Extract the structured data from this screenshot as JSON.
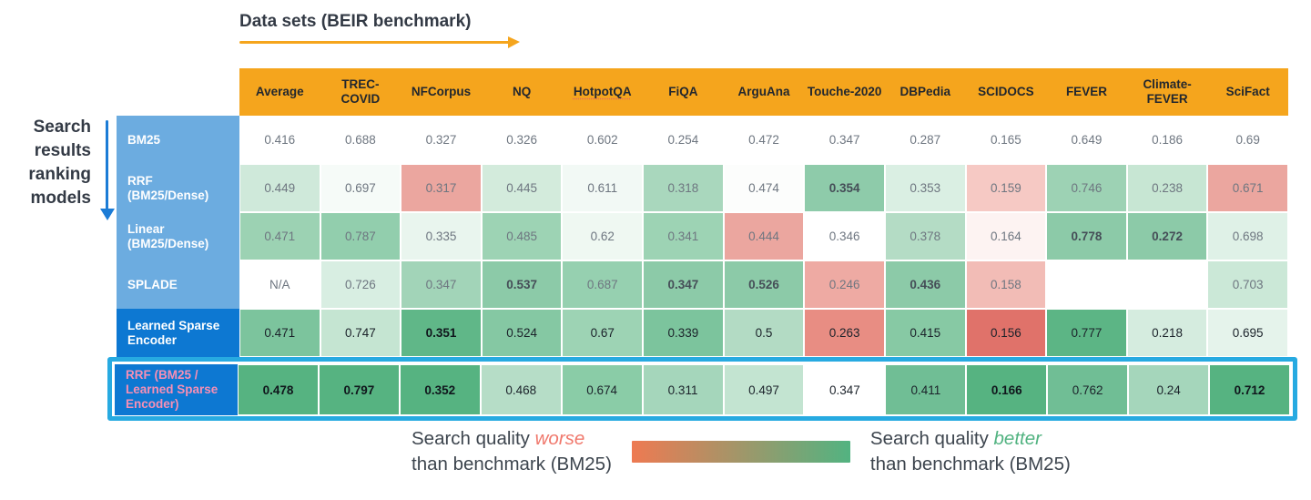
{
  "chart_data": {
    "type": "heatmap",
    "title": "Data sets (BEIR benchmark)",
    "row_axis_label": "Search results ranking models",
    "columns": [
      "Average",
      "TREC-COVID",
      "NFCorpus",
      "NQ",
      "HotpotQA",
      "FiQA",
      "ArguAna",
      "Touche-2020",
      "DBPedia",
      "SCIDOCS",
      "FEVER",
      "Climate-FEVER",
      "SciFact"
    ],
    "rows": [
      "BM25",
      "RRF (BM25/Dense)",
      "Linear (BM25/Dense)",
      "SPLADE",
      "Learned Sparse Encoder",
      "RRF (BM25 / Learned Sparse Encoder)"
    ],
    "values": [
      [
        0.416,
        0.688,
        0.327,
        0.326,
        0.602,
        0.254,
        0.472,
        0.347,
        0.287,
        0.165,
        0.649,
        0.186,
        0.69
      ],
      [
        0.449,
        0.697,
        0.317,
        0.445,
        0.611,
        0.318,
        0.474,
        0.354,
        0.353,
        0.159,
        0.746,
        0.238,
        0.671
      ],
      [
        0.471,
        0.787,
        0.335,
        0.485,
        0.62,
        0.341,
        0.444,
        0.346,
        0.378,
        0.164,
        0.778,
        0.272,
        0.698
      ],
      [
        null,
        0.726,
        0.347,
        0.537,
        0.687,
        0.347,
        0.526,
        0.246,
        0.436,
        0.158,
        null,
        null,
        0.703
      ],
      [
        0.471,
        0.747,
        0.351,
        0.524,
        0.67,
        0.339,
        0.5,
        0.263,
        0.415,
        0.156,
        0.777,
        0.218,
        0.695
      ],
      [
        0.478,
        0.797,
        0.352,
        0.468,
        0.674,
        0.311,
        0.497,
        0.347,
        0.411,
        0.166,
        0.762,
        0.24,
        0.712
      ]
    ],
    "benchmark_row": "BM25",
    "highlighted_row": "RRF (BM25 / Learned Sparse Encoder)",
    "legend_position": "bottom",
    "color_scale": {
      "worse": "#ee7a52",
      "neutral": "#ffffff",
      "better": "#52b381"
    }
  },
  "title": {
    "text": "Data sets (BEIR benchmark)",
    "arrow_color": "#f5a51d"
  },
  "y_axis": {
    "text": "Search results ranking models",
    "arrow_color": "#1c7cd6"
  },
  "heatmap": {
    "header_bg": "#f5a51d",
    "underlined_columns": [
      "HotpotQA"
    ],
    "columns": [
      "Average",
      "TREC-COVID",
      "NFCorpus",
      "NQ",
      "HotpotQA",
      "FiQA",
      "ArguAna",
      "Touche-2020",
      "DBPedia",
      "SCIDOCS",
      "FEVER",
      "Climate-FEVER",
      "SciFact"
    ],
    "rows": [
      {
        "label": "BM25",
        "label_bg": "#6cace0",
        "label_color": "#ffffff",
        "text_color": "#6e7680",
        "bold_text_color": "#454d57",
        "highlight": false,
        "cells": [
          {
            "v": "0.416",
            "bg": "#ffffff",
            "bold": false
          },
          {
            "v": "0.688",
            "bg": "#ffffff",
            "bold": false
          },
          {
            "v": "0.327",
            "bg": "#ffffff",
            "bold": false
          },
          {
            "v": "0.326",
            "bg": "#ffffff",
            "bold": false
          },
          {
            "v": "0.602",
            "bg": "#ffffff",
            "bold": false
          },
          {
            "v": "0.254",
            "bg": "#ffffff",
            "bold": false
          },
          {
            "v": "0.472",
            "bg": "#ffffff",
            "bold": false
          },
          {
            "v": "0.347",
            "bg": "#ffffff",
            "bold": false
          },
          {
            "v": "0.287",
            "bg": "#ffffff",
            "bold": false
          },
          {
            "v": "0.165",
            "bg": "#ffffff",
            "bold": false
          },
          {
            "v": "0.649",
            "bg": "#ffffff",
            "bold": false
          },
          {
            "v": "0.186",
            "bg": "#ffffff",
            "bold": false
          },
          {
            "v": "0.69",
            "bg": "#ffffff",
            "bold": false
          }
        ]
      },
      {
        "label": "RRF (BM25/Dense)",
        "label_bg": "#6cace0",
        "label_color": "#ffffff",
        "text_color": "#6e7680",
        "bold_text_color": "#454d57",
        "highlight": false,
        "cells": [
          {
            "v": "0.449",
            "bg": "#cfe9da",
            "bold": false
          },
          {
            "v": "0.697",
            "bg": "#f6fbf8",
            "bold": false
          },
          {
            "v": "0.317",
            "bg": "#eba69f",
            "bold": false
          },
          {
            "v": "0.445",
            "bg": "#d3ebdc",
            "bold": false
          },
          {
            "v": "0.611",
            "bg": "#f2f9f5",
            "bold": false
          },
          {
            "v": "0.318",
            "bg": "#a9d7bd",
            "bold": false
          },
          {
            "v": "0.474",
            "bg": "#fcfdfc",
            "bold": false
          },
          {
            "v": "0.354",
            "bg": "#8ecbaa",
            "bold": true
          },
          {
            "v": "0.353",
            "bg": "#daefe3",
            "bold": false
          },
          {
            "v": "0.159",
            "bg": "#f6c9c4",
            "bold": false
          },
          {
            "v": "0.746",
            "bg": "#9dd2b4",
            "bold": false
          },
          {
            "v": "0.238",
            "bg": "#c7e6d3",
            "bold": false
          },
          {
            "v": "0.671",
            "bg": "#eba69f",
            "bold": false
          }
        ]
      },
      {
        "label": "Linear (BM25/Dense)",
        "label_bg": "#6cace0",
        "label_color": "#ffffff",
        "text_color": "#6e7680",
        "bold_text_color": "#454d57",
        "highlight": false,
        "cells": [
          {
            "v": "0.471",
            "bg": "#9cd2b3",
            "bold": false
          },
          {
            "v": "0.787",
            "bg": "#92cead",
            "bold": false
          },
          {
            "v": "0.335",
            "bg": "#e9f5ee",
            "bold": false
          },
          {
            "v": "0.485",
            "bg": "#9dd3b4",
            "bold": false
          },
          {
            "v": "0.62",
            "bg": "#eff8f2",
            "bold": false
          },
          {
            "v": "0.341",
            "bg": "#9dd3b4",
            "bold": false
          },
          {
            "v": "0.444",
            "bg": "#eba69f",
            "bold": false
          },
          {
            "v": "0.346",
            "bg": "#ffffff",
            "bold": false
          },
          {
            "v": "0.378",
            "bg": "#b4dcc5",
            "bold": false
          },
          {
            "v": "0.164",
            "bg": "#fdf3f2",
            "bold": false
          },
          {
            "v": "0.778",
            "bg": "#8ccaa8",
            "bold": true
          },
          {
            "v": "0.272",
            "bg": "#8ccaa8",
            "bold": true
          },
          {
            "v": "0.698",
            "bg": "#dff1e7",
            "bold": false
          }
        ]
      },
      {
        "label": "SPLADE",
        "label_bg": "#6cace0",
        "label_color": "#ffffff",
        "text_color": "#6e7680",
        "bold_text_color": "#454d57",
        "highlight": false,
        "cells": [
          {
            "v": "N/A",
            "bg": "#ffffff",
            "bold": false
          },
          {
            "v": "0.726",
            "bg": "#d8eee2",
            "bold": false
          },
          {
            "v": "0.347",
            "bg": "#a2d4b8",
            "bold": false
          },
          {
            "v": "0.537",
            "bg": "#8ccaa8",
            "bold": true
          },
          {
            "v": "0.687",
            "bg": "#96d0b0",
            "bold": false
          },
          {
            "v": "0.347",
            "bg": "#8ccaa8",
            "bold": true
          },
          {
            "v": "0.526",
            "bg": "#8ccaa8",
            "bold": true
          },
          {
            "v": "0.246",
            "bg": "#eeaaa3",
            "bold": false
          },
          {
            "v": "0.436",
            "bg": "#8ccaa8",
            "bold": true
          },
          {
            "v": "0.158",
            "bg": "#f2bcb6",
            "bold": false
          },
          {
            "v": "",
            "bg": "#ffffff",
            "bold": false
          },
          {
            "v": "",
            "bg": "#ffffff",
            "bold": false
          },
          {
            "v": "0.703",
            "bg": "#cbe8d7",
            "bold": false
          }
        ]
      },
      {
        "label": "Learned Sparse Encoder",
        "label_bg": "#0d78d2",
        "label_color": "#ffffff",
        "text_color": "#1b222a",
        "bold_text_color": "#10161c",
        "highlight": false,
        "cells": [
          {
            "v": "0.471",
            "bg": "#7cc49d",
            "bold": false
          },
          {
            "v": "0.747",
            "bg": "#c5e5d2",
            "bold": false
          },
          {
            "v": "0.351",
            "bg": "#60b788",
            "bold": true
          },
          {
            "v": "0.524",
            "bg": "#85c8a3",
            "bold": false
          },
          {
            "v": "0.67",
            "bg": "#9dd3b4",
            "bold": false
          },
          {
            "v": "0.339",
            "bg": "#7cc49d",
            "bold": false
          },
          {
            "v": "0.5",
            "bg": "#b3dbc4",
            "bold": false
          },
          {
            "v": "0.263",
            "bg": "#e88d83",
            "bold": false
          },
          {
            "v": "0.415",
            "bg": "#87c9a4",
            "bold": false
          },
          {
            "v": "0.156",
            "bg": "#e0726a",
            "bold": false
          },
          {
            "v": "0.777",
            "bg": "#5cb585",
            "bold": false
          },
          {
            "v": "0.218",
            "bg": "#d5ecdf",
            "bold": false
          },
          {
            "v": "0.695",
            "bg": "#e5f3eb",
            "bold": false
          }
        ]
      },
      {
        "label": "RRF (BM25 / Learned Sparse Encoder)",
        "label_bg": "#0d78d2",
        "label_color": "#f78fb5",
        "text_color": "#1b222a",
        "bold_text_color": "#10161c",
        "highlight": true,
        "cells": [
          {
            "v": "0.478",
            "bg": "#56b381",
            "bold": true
          },
          {
            "v": "0.797",
            "bg": "#56b381",
            "bold": true
          },
          {
            "v": "0.352",
            "bg": "#56b381",
            "bold": true
          },
          {
            "v": "0.468",
            "bg": "#b6ddc7",
            "bold": false
          },
          {
            "v": "0.674",
            "bg": "#8acca7",
            "bold": false
          },
          {
            "v": "0.311",
            "bg": "#a5d6bb",
            "bold": false
          },
          {
            "v": "0.497",
            "bg": "#c3e4d1",
            "bold": false
          },
          {
            "v": "0.347",
            "bg": "#ffffff",
            "bold": false
          },
          {
            "v": "0.411",
            "bg": "#70be95",
            "bold": false
          },
          {
            "v": "0.166",
            "bg": "#56b381",
            "bold": true
          },
          {
            "v": "0.762",
            "bg": "#70be95",
            "bold": false
          },
          {
            "v": "0.24",
            "bg": "#a5d6bb",
            "bold": false
          },
          {
            "v": "0.712",
            "bg": "#56b381",
            "bold": true
          }
        ]
      }
    ],
    "highlight_border_color": "#27aae1"
  },
  "legend": {
    "quality_label": "Search quality",
    "worse_word": "worse",
    "better_word": "better",
    "benchmark_label": "than benchmark (BM25)",
    "worse_color": "#f0786c",
    "better_color": "#52b381",
    "gradient_from": "#ee7a52",
    "gradient_to": "#52b381"
  }
}
